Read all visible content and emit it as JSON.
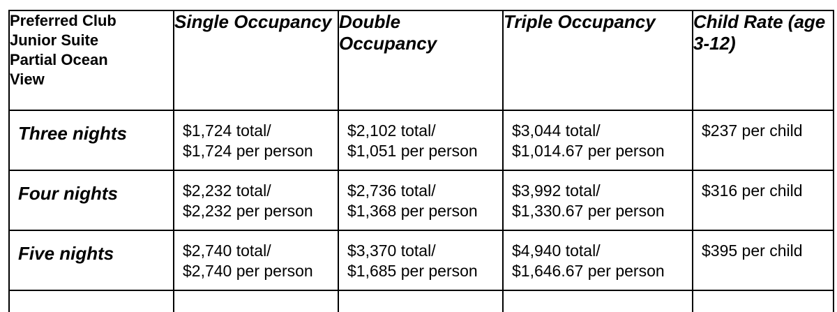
{
  "table": {
    "corner_header": "Preferred Club Junior Suite Partial Ocean View",
    "columns": [
      "Single Occupancy",
      "Double Occupancy",
      "Triple Occupancy",
      "Child Rate (age 3-12)"
    ],
    "rows": [
      {
        "label": "Three nights",
        "single": {
          "total": "$1,724 total/",
          "per": "$1,724 per person"
        },
        "double": {
          "total": "$2,102 total/",
          "per": "$1,051 per person"
        },
        "triple": {
          "total": "$3,044 total/",
          "per": "$1,014.67 per person"
        },
        "child": "$237 per child"
      },
      {
        "label": "Four nights",
        "single": {
          "total": "$2,232 total/",
          "per": "$2,232 per person"
        },
        "double": {
          "total": "$2,736 total/",
          "per": "$1,368 per person"
        },
        "triple": {
          "total": "$3,992 total/",
          "per": "$1,330.67 per person"
        },
        "child": "$316 per child"
      },
      {
        "label": "Five nights",
        "single": {
          "total": "$2,740 total/",
          "per": "$2,740 per person"
        },
        "double": {
          "total": "$3,370 total/",
          "per": "$1,685 per person"
        },
        "triple": {
          "total": "$4,940 total/",
          "per": "$1,646.67 per person"
        },
        "child": "$395 per child"
      }
    ]
  }
}
